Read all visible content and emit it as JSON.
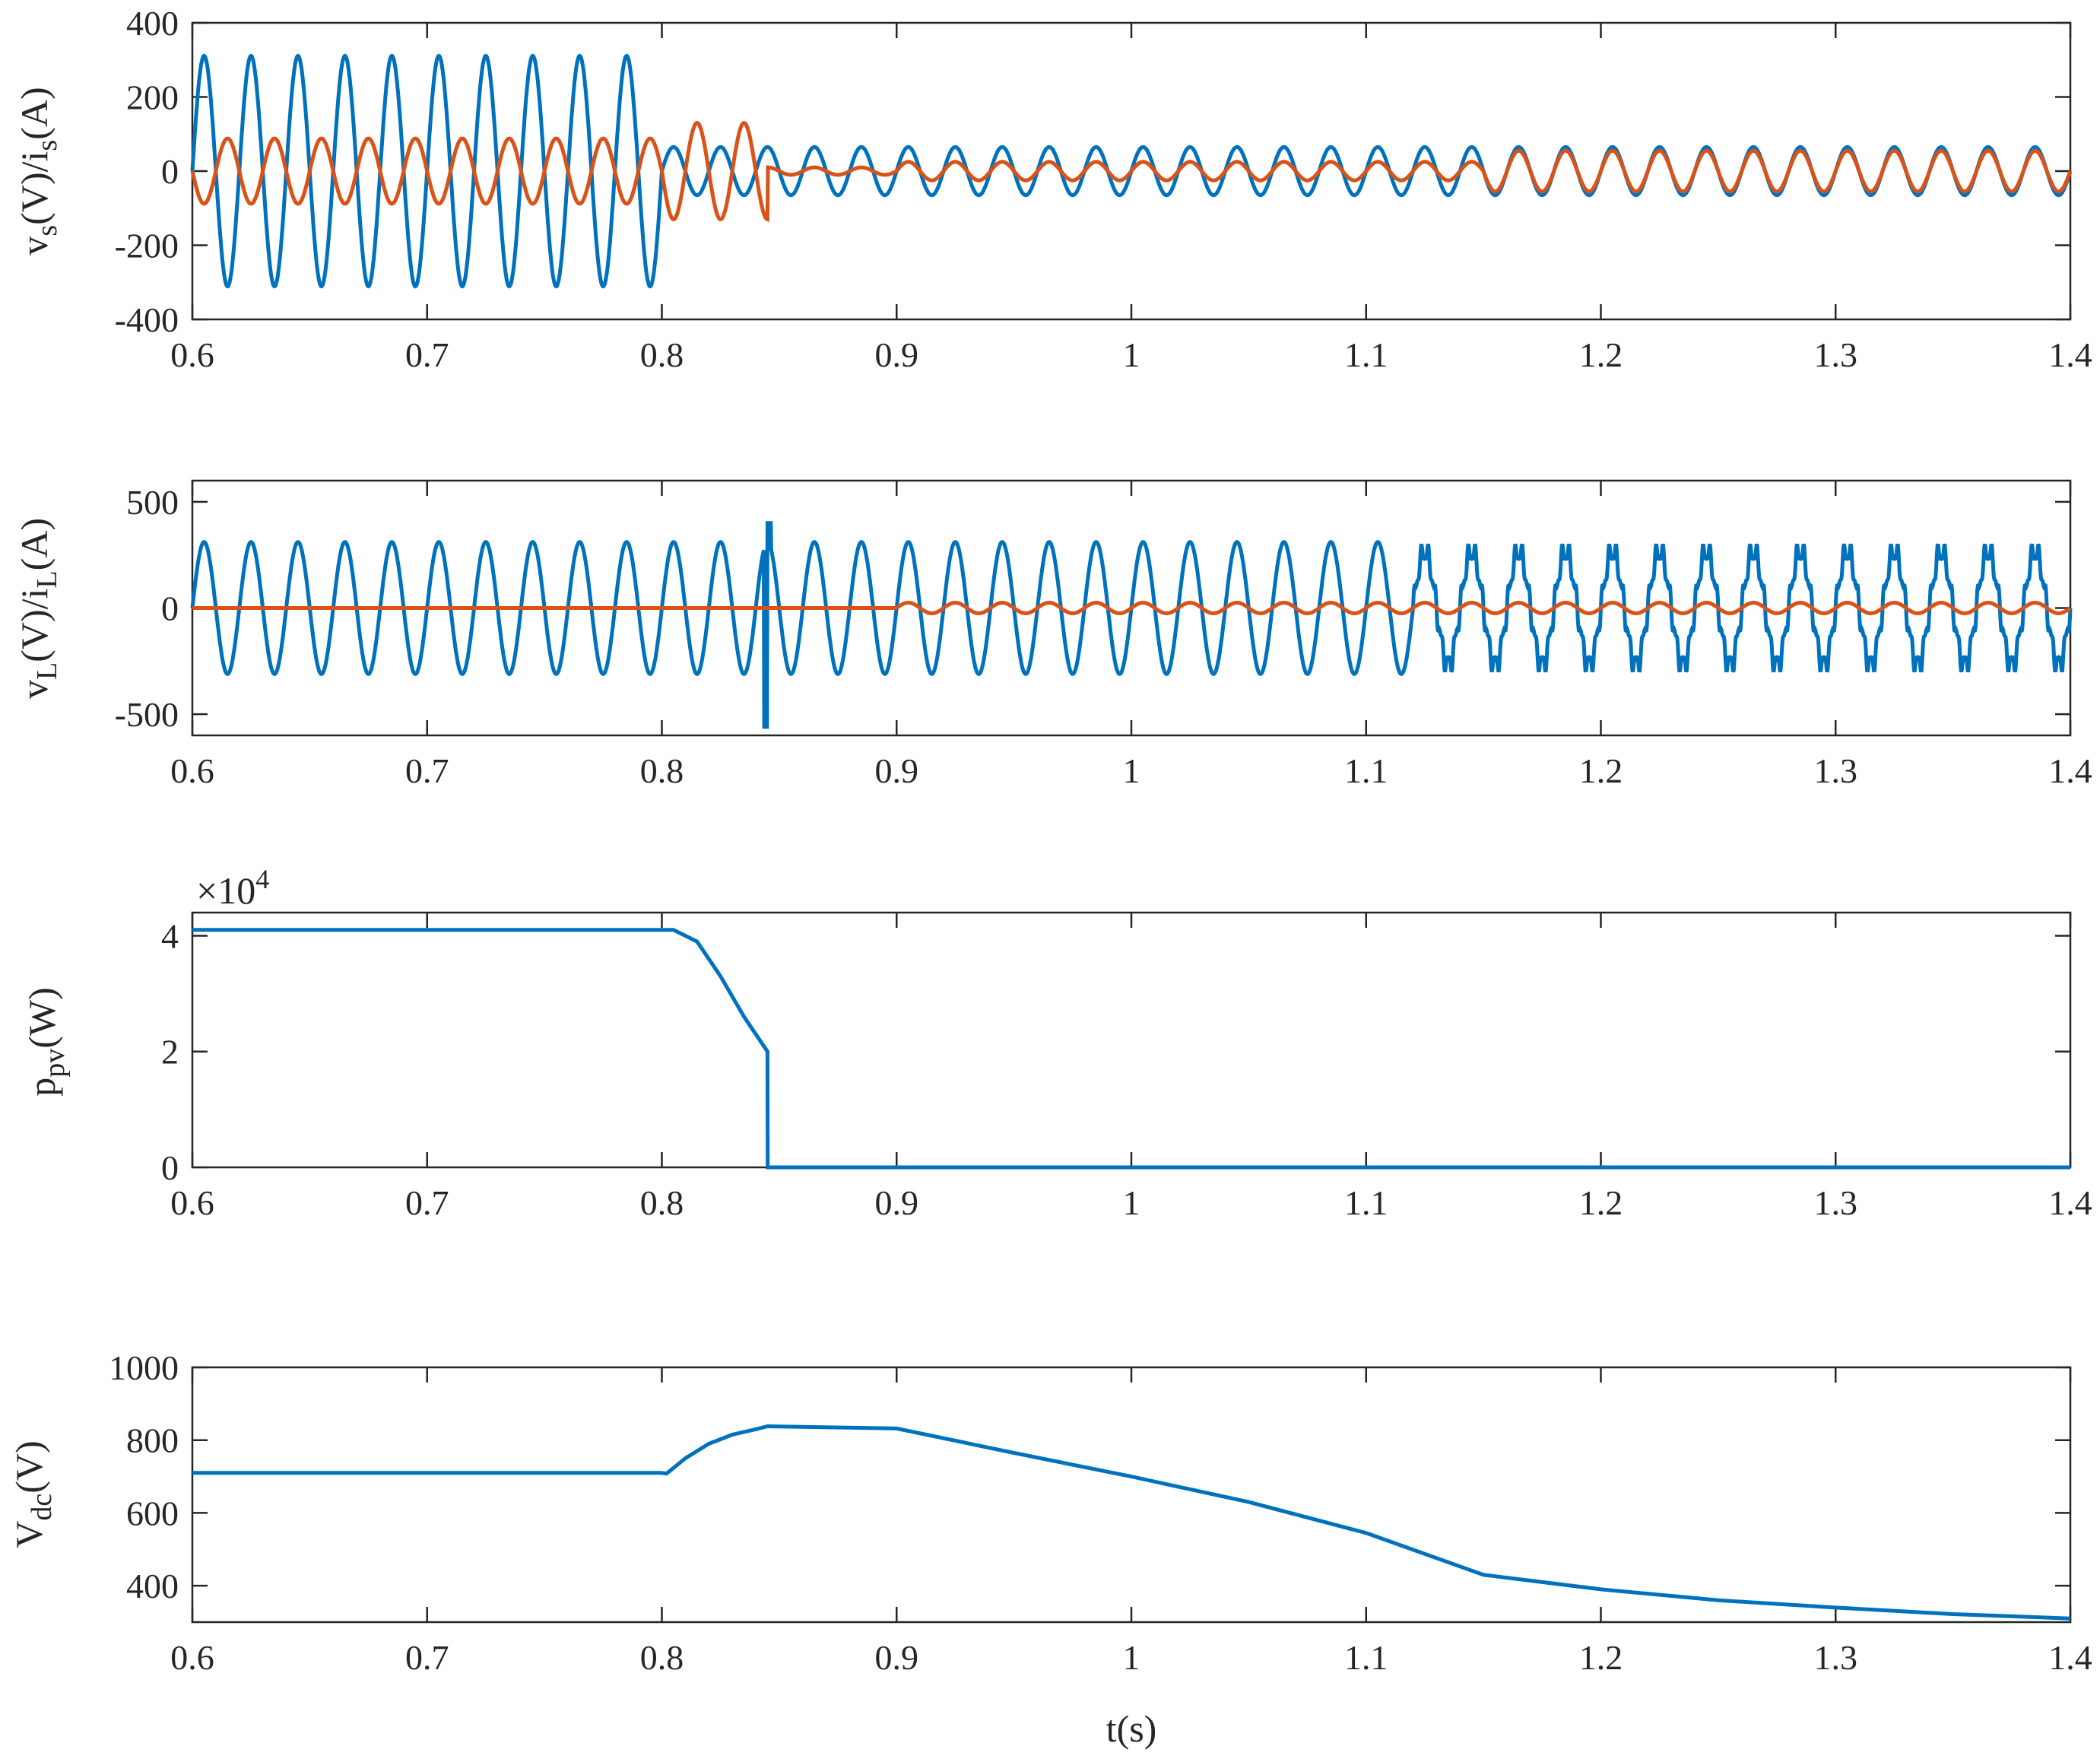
{
  "chart_data": [
    {
      "type": "line",
      "ylabel": "v_s(V)/i_s(A)",
      "ylabel_parts": {
        "a": "v",
        "a_sub": "s",
        "b": "(V)/i",
        "b_sub": "s",
        "c": "(A)"
      },
      "xlim": [
        0.6,
        1.4
      ],
      "ylim": [
        -400,
        400
      ],
      "xticks": [
        "0.6",
        "0.7",
        "0.8",
        "0.9",
        "1",
        "1.1",
        "1.2",
        "1.3",
        "1.4"
      ],
      "yticks": [
        "-400",
        "-200",
        "0",
        "200",
        "400"
      ],
      "series": [
        {
          "color": "#0072BD",
          "frequency_hz": 50,
          "segments": [
            {
              "t": [
                0.6,
                0.8
              ],
              "amplitude": 311
            },
            {
              "t": [
                0.8,
                1.4
              ],
              "amplitude": 65
            }
          ]
        },
        {
          "color": "#D95319",
          "frequency_hz": 50,
          "segments": [
            {
              "t": [
                0.6,
                0.8
              ],
              "amplitude": 88,
              "phase": "antiphase"
            },
            {
              "t": [
                0.8,
                0.845
              ],
              "amplitude": 130,
              "phase": "antiphase"
            },
            {
              "t": [
                0.845,
                0.9
              ],
              "amplitude": 10
            },
            {
              "t": [
                0.9,
                1.15
              ],
              "amplitude": 25
            },
            {
              "t": [
                1.15,
                1.4
              ],
              "amplitude": 55
            }
          ]
        }
      ]
    },
    {
      "type": "line",
      "ylabel": "v_L(V)/i_L(A)",
      "ylabel_parts": {
        "a": "v",
        "a_sub": "L",
        "b": "(V)/i",
        "b_sub": "L",
        "c": "(A)"
      },
      "xlim": [
        0.6,
        1.4
      ],
      "ylim": [
        -600,
        600
      ],
      "xticks": [
        "0.6",
        "0.7",
        "0.8",
        "0.9",
        "1",
        "1.1",
        "1.2",
        "1.3",
        "1.4"
      ],
      "yticks": [
        "-500",
        "0",
        "500"
      ],
      "series": [
        {
          "color": "#0072BD",
          "frequency_hz": 50,
          "amplitude": 311,
          "transient_t": 0.845,
          "transient_range": [
            -560,
            400
          ],
          "distortion_from_t": 1.12
        },
        {
          "color": "#D95319",
          "frequency_hz": 50,
          "segments": [
            {
              "t": [
                0.6,
                0.9
              ],
              "amplitude": 0
            },
            {
              "t": [
                0.9,
                1.4
              ],
              "amplitude": 25
            }
          ]
        }
      ]
    },
    {
      "type": "line",
      "ylabel": "p_pv(W)",
      "ylabel_parts": {
        "a": "p",
        "a_sub": "pv",
        "b": "(W)"
      },
      "exponent": "×10",
      "exponent_power": "4",
      "xlim": [
        0.6,
        1.4
      ],
      "ylim": [
        0,
        4.4
      ],
      "xticks": [
        "0.6",
        "0.7",
        "0.8",
        "0.9",
        "1",
        "1.1",
        "1.2",
        "1.3",
        "1.4"
      ],
      "yticks": [
        "0",
        "2",
        "4"
      ],
      "series": [
        {
          "color": "#0072BD",
          "x": [
            0.6,
            0.805,
            0.815,
            0.825,
            0.835,
            0.845,
            0.8451,
            1.4
          ],
          "y": [
            4.1,
            4.1,
            3.9,
            3.3,
            2.6,
            2.0,
            0,
            0
          ]
        }
      ]
    },
    {
      "type": "line",
      "ylabel": "V_dc(V)",
      "ylabel_parts": {
        "a": "V",
        "a_sub": "dc",
        "b": "(V)"
      },
      "xlabel": "t(s)",
      "xlim": [
        0.6,
        1.4
      ],
      "ylim": [
        300,
        1000
      ],
      "xticks": [
        "0.6",
        "0.7",
        "0.8",
        "0.9",
        "1",
        "1.1",
        "1.2",
        "1.3",
        "1.4"
      ],
      "yticks": [
        "400",
        "600",
        "800",
        "1000"
      ],
      "series": [
        {
          "color": "#0072BD",
          "x": [
            0.6,
            0.8,
            0.802,
            0.81,
            0.82,
            0.83,
            0.84,
            0.845,
            0.9,
            0.95,
            1.0,
            1.05,
            1.1,
            1.15,
            1.2,
            1.25,
            1.3,
            1.35,
            1.4
          ],
          "y": [
            710,
            710,
            708,
            750,
            790,
            815,
            830,
            838,
            832,
            765,
            700,
            630,
            545,
            430,
            390,
            360,
            340,
            322,
            310
          ]
        }
      ]
    }
  ]
}
